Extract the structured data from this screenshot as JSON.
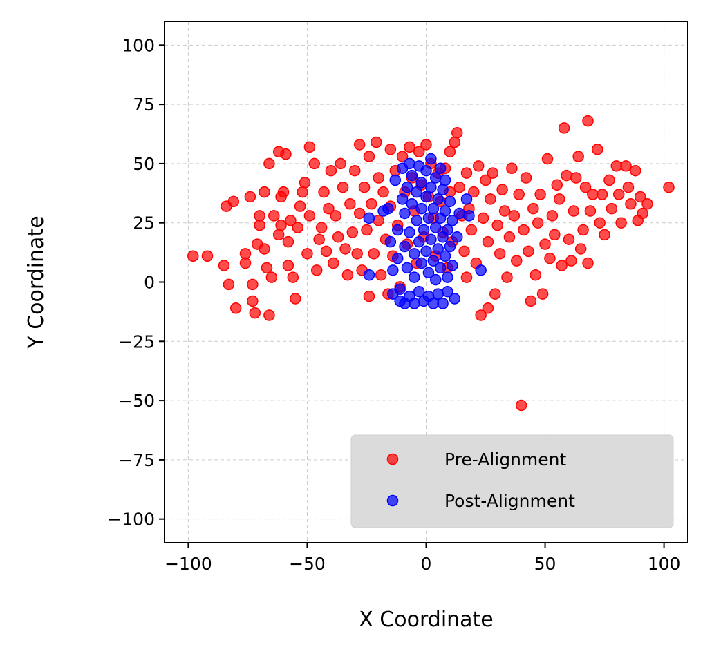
{
  "chart_data": {
    "type": "scatter",
    "title": "",
    "xlabel": "X Coordinate",
    "ylabel": "Y Coordinate",
    "xlim": [
      -110,
      110
    ],
    "ylim": [
      -110,
      110
    ],
    "x_ticks": [
      -100,
      -50,
      0,
      50,
      100
    ],
    "y_ticks": [
      -100,
      -75,
      -50,
      -25,
      0,
      25,
      50,
      75,
      100
    ],
    "x_tick_labels": [
      "−100",
      "−50",
      "0",
      "50",
      "100"
    ],
    "y_tick_labels": [
      "−100",
      "−75",
      "−50",
      "−25",
      "0",
      "25",
      "50",
      "75",
      "100"
    ],
    "grid": true,
    "legend_position": "lower-right",
    "series": [
      {
        "name": "Pre-Alignment",
        "color": "#ff0000",
        "points": [
          [
            -98,
            11
          ],
          [
            -92,
            11
          ],
          [
            -84,
            32
          ],
          [
            -85,
            7
          ],
          [
            -83,
            -1
          ],
          [
            -81,
            34
          ],
          [
            -80,
            -11
          ],
          [
            -76,
            12
          ],
          [
            -76,
            8
          ],
          [
            -74,
            36
          ],
          [
            -73,
            -1
          ],
          [
            -73,
            -8
          ],
          [
            -72,
            -13
          ],
          [
            -71,
            16
          ],
          [
            -70,
            24
          ],
          [
            -70,
            28
          ],
          [
            -68,
            38
          ],
          [
            -68,
            14
          ],
          [
            -67,
            6
          ],
          [
            -66,
            -14
          ],
          [
            -66,
            50
          ],
          [
            -65,
            2
          ],
          [
            -64,
            28
          ],
          [
            -62,
            55
          ],
          [
            -62,
            20
          ],
          [
            -61,
            36
          ],
          [
            -61,
            24
          ],
          [
            -60,
            38
          ],
          [
            -59,
            54
          ],
          [
            -58,
            17
          ],
          [
            -58,
            7
          ],
          [
            -57,
            26
          ],
          [
            -56,
            2
          ],
          [
            -55,
            -7
          ],
          [
            -54,
            23
          ],
          [
            -53,
            32
          ],
          [
            -52,
            38
          ],
          [
            -51,
            42
          ],
          [
            -50,
            12
          ],
          [
            -49,
            57
          ],
          [
            -49,
            28
          ],
          [
            -47,
            50
          ],
          [
            -46,
            5
          ],
          [
            -45,
            18
          ],
          [
            -44,
            23
          ],
          [
            -43,
            38
          ],
          [
            -42,
            13
          ],
          [
            -41,
            31
          ],
          [
            -40,
            47
          ],
          [
            -39,
            8
          ],
          [
            -38,
            28
          ],
          [
            -37,
            19
          ],
          [
            -36,
            50
          ],
          [
            -35,
            40
          ],
          [
            -34,
            14
          ],
          [
            -33,
            3
          ],
          [
            -32,
            33
          ],
          [
            -31,
            21
          ],
          [
            -30,
            47
          ],
          [
            -29,
            12
          ],
          [
            -28,
            58
          ],
          [
            -28,
            29
          ],
          [
            -27,
            5
          ],
          [
            -26,
            40
          ],
          [
            -25,
            22
          ],
          [
            -24,
            53
          ],
          [
            -24,
            -6
          ],
          [
            -23,
            33
          ],
          [
            -22,
            12
          ],
          [
            -21,
            59
          ],
          [
            -20,
            44
          ],
          [
            -20,
            26
          ],
          [
            -19,
            3
          ],
          [
            -18,
            38
          ],
          [
            -17,
            18
          ],
          [
            -16,
            -5
          ],
          [
            -15,
            56
          ],
          [
            -15,
            32
          ],
          [
            -14,
            11
          ],
          [
            -13,
            47
          ],
          [
            -12,
            24
          ],
          [
            -11,
            -2
          ],
          [
            -10,
            53
          ],
          [
            -9,
            38
          ],
          [
            -8,
            16
          ],
          [
            -7,
            57
          ],
          [
            -6,
            44
          ],
          [
            -5,
            30
          ],
          [
            -4,
            8
          ],
          [
            -3,
            55
          ],
          [
            -2,
            41
          ],
          [
            -1,
            19
          ],
          [
            0,
            58
          ],
          [
            1,
            36
          ],
          [
            2,
            50
          ],
          [
            3,
            27
          ],
          [
            4,
            11
          ],
          [
            5,
            46
          ],
          [
            6,
            34
          ],
          [
            7,
            21
          ],
          [
            8,
            48
          ],
          [
            9,
            6
          ],
          [
            10,
            38
          ],
          [
            10,
            55
          ],
          [
            11,
            17
          ],
          [
            12,
            59
          ],
          [
            13,
            63
          ],
          [
            14,
            40
          ],
          [
            15,
            28
          ],
          [
            16,
            13
          ],
          [
            17,
            46
          ],
          [
            17,
            2
          ],
          [
            18,
            31
          ],
          [
            19,
            22
          ],
          [
            20,
            38
          ],
          [
            21,
            8
          ],
          [
            22,
            49
          ],
          [
            23,
            -14
          ],
          [
            24,
            27
          ],
          [
            25,
            43
          ],
          [
            26,
            -11
          ],
          [
            26,
            17
          ],
          [
            27,
            35
          ],
          [
            28,
            46
          ],
          [
            29,
            -5
          ],
          [
            30,
            24
          ],
          [
            31,
            12
          ],
          [
            32,
            39
          ],
          [
            33,
            30
          ],
          [
            34,
            2
          ],
          [
            35,
            19
          ],
          [
            36,
            48
          ],
          [
            37,
            28
          ],
          [
            38,
            9
          ],
          [
            39,
            37
          ],
          [
            40,
            -52
          ],
          [
            41,
            22
          ],
          [
            42,
            44
          ],
          [
            43,
            13
          ],
          [
            44,
            -8
          ],
          [
            45,
            31
          ],
          [
            46,
            3
          ],
          [
            47,
            25
          ],
          [
            48,
            37
          ],
          [
            49,
            -5
          ],
          [
            50,
            16
          ],
          [
            51,
            52
          ],
          [
            52,
            10
          ],
          [
            53,
            28
          ],
          [
            54,
            20
          ],
          [
            55,
            41
          ],
          [
            56,
            35
          ],
          [
            57,
            7
          ],
          [
            58,
            65
          ],
          [
            59,
            45
          ],
          [
            60,
            18
          ],
          [
            61,
            9
          ],
          [
            62,
            30
          ],
          [
            63,
            44
          ],
          [
            64,
            53
          ],
          [
            65,
            14
          ],
          [
            66,
            22
          ],
          [
            67,
            40
          ],
          [
            68,
            68
          ],
          [
            68,
            8
          ],
          [
            69,
            30
          ],
          [
            70,
            37
          ],
          [
            72,
            56
          ],
          [
            73,
            25
          ],
          [
            74,
            37
          ],
          [
            75,
            20
          ],
          [
            77,
            43
          ],
          [
            78,
            31
          ],
          [
            80,
            49
          ],
          [
            81,
            37
          ],
          [
            82,
            25
          ],
          [
            84,
            49
          ],
          [
            85,
            40
          ],
          [
            86,
            33
          ],
          [
            88,
            47
          ],
          [
            89,
            26
          ],
          [
            90,
            36
          ],
          [
            91,
            29
          ],
          [
            93,
            33
          ],
          [
            102,
            40
          ]
        ]
      },
      {
        "name": "Post-Alignment",
        "color": "#0000ff",
        "points": [
          [
            -24,
            27
          ],
          [
            -24,
            3
          ],
          [
            -18,
            30
          ],
          [
            -16,
            31
          ],
          [
            -15,
            17
          ],
          [
            -14,
            5
          ],
          [
            -14,
            -5
          ],
          [
            -13,
            43
          ],
          [
            -12,
            22
          ],
          [
            -12,
            10
          ],
          [
            -11,
            -3
          ],
          [
            -11,
            -8
          ],
          [
            -10,
            35
          ],
          [
            -10,
            48
          ],
          [
            -9,
            15
          ],
          [
            -9,
            29
          ],
          [
            -9,
            -9
          ],
          [
            -8,
            40
          ],
          [
            -8,
            6
          ],
          [
            -7,
            50
          ],
          [
            -7,
            21
          ],
          [
            -7,
            -6
          ],
          [
            -6,
            33
          ],
          [
            -6,
            45
          ],
          [
            -5,
            2
          ],
          [
            -5,
            12
          ],
          [
            -5,
            -9
          ],
          [
            -4,
            26
          ],
          [
            -4,
            38
          ],
          [
            -3,
            49
          ],
          [
            -3,
            17
          ],
          [
            -3,
            -4
          ],
          [
            -2,
            8
          ],
          [
            -2,
            31
          ],
          [
            -2,
            42
          ],
          [
            -1,
            22
          ],
          [
            -1,
            -8
          ],
          [
            0,
            13
          ],
          [
            0,
            36
          ],
          [
            0,
            47
          ],
          [
            1,
            4
          ],
          [
            1,
            27
          ],
          [
            1,
            -6
          ],
          [
            2,
            52
          ],
          [
            2,
            18
          ],
          [
            2,
            40
          ],
          [
            3,
            9
          ],
          [
            3,
            31
          ],
          [
            3,
            -9
          ],
          [
            4,
            44
          ],
          [
            4,
            23
          ],
          [
            4,
            1
          ],
          [
            5,
            14
          ],
          [
            5,
            35
          ],
          [
            5,
            -5
          ],
          [
            6,
            48
          ],
          [
            6,
            27
          ],
          [
            6,
            6
          ],
          [
            7,
            19
          ],
          [
            7,
            39
          ],
          [
            7,
            -9
          ],
          [
            8,
            11
          ],
          [
            8,
            30
          ],
          [
            8,
            43
          ],
          [
            9,
            2
          ],
          [
            9,
            22
          ],
          [
            9,
            -4
          ],
          [
            10,
            34
          ],
          [
            10,
            15
          ],
          [
            11,
            26
          ],
          [
            11,
            7
          ],
          [
            12,
            -7
          ],
          [
            13,
            19
          ],
          [
            14,
            29
          ],
          [
            17,
            35
          ],
          [
            18,
            28
          ],
          [
            23,
            5
          ]
        ]
      }
    ]
  }
}
